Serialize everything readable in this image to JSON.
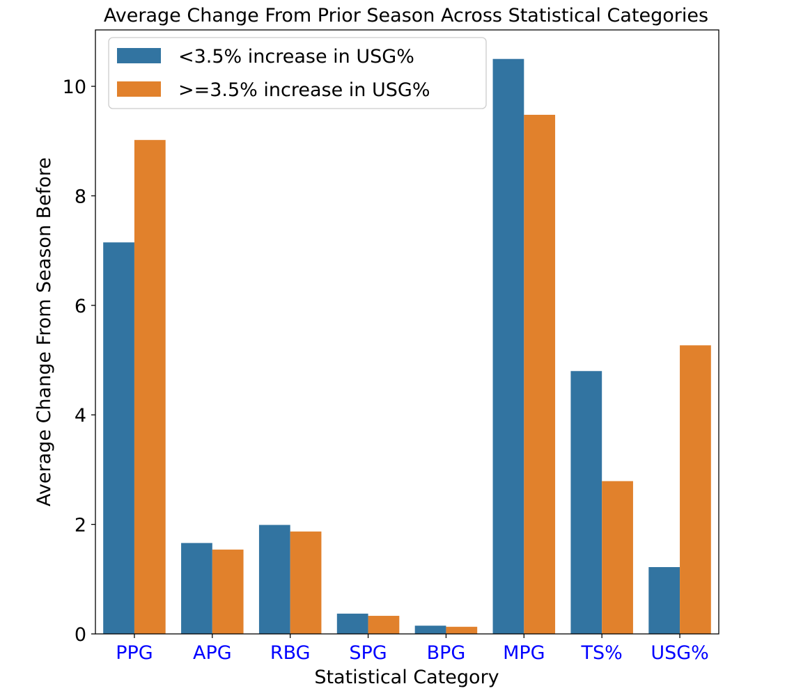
{
  "chart_data": {
    "type": "bar",
    "title": "Average Change From Prior Season Across Statistical Categories",
    "xlabel": "Statistical Category",
    "ylabel": "Average Change From Season Before",
    "categories": [
      "PPG",
      "APG",
      "RBG",
      "SPG",
      "BPG",
      "MPG",
      "TS%",
      "USG%"
    ],
    "series": [
      {
        "name": "<3.5% increase in USG%",
        "color": "#3274a1",
        "values": [
          7.15,
          1.66,
          1.99,
          0.37,
          0.15,
          10.5,
          4.8,
          1.22
        ]
      },
      {
        "name": ">=3.5% increase in USG%",
        "color": "#e1812c",
        "values": [
          9.02,
          1.54,
          1.87,
          0.33,
          0.13,
          9.48,
          2.79,
          5.27
        ]
      }
    ],
    "yticks": [
      0,
      2,
      4,
      6,
      8,
      10
    ],
    "ylim": [
      0,
      11.03
    ],
    "grid": false,
    "legend_position": "top-left",
    "tick_label_color": "#0000ff"
  }
}
